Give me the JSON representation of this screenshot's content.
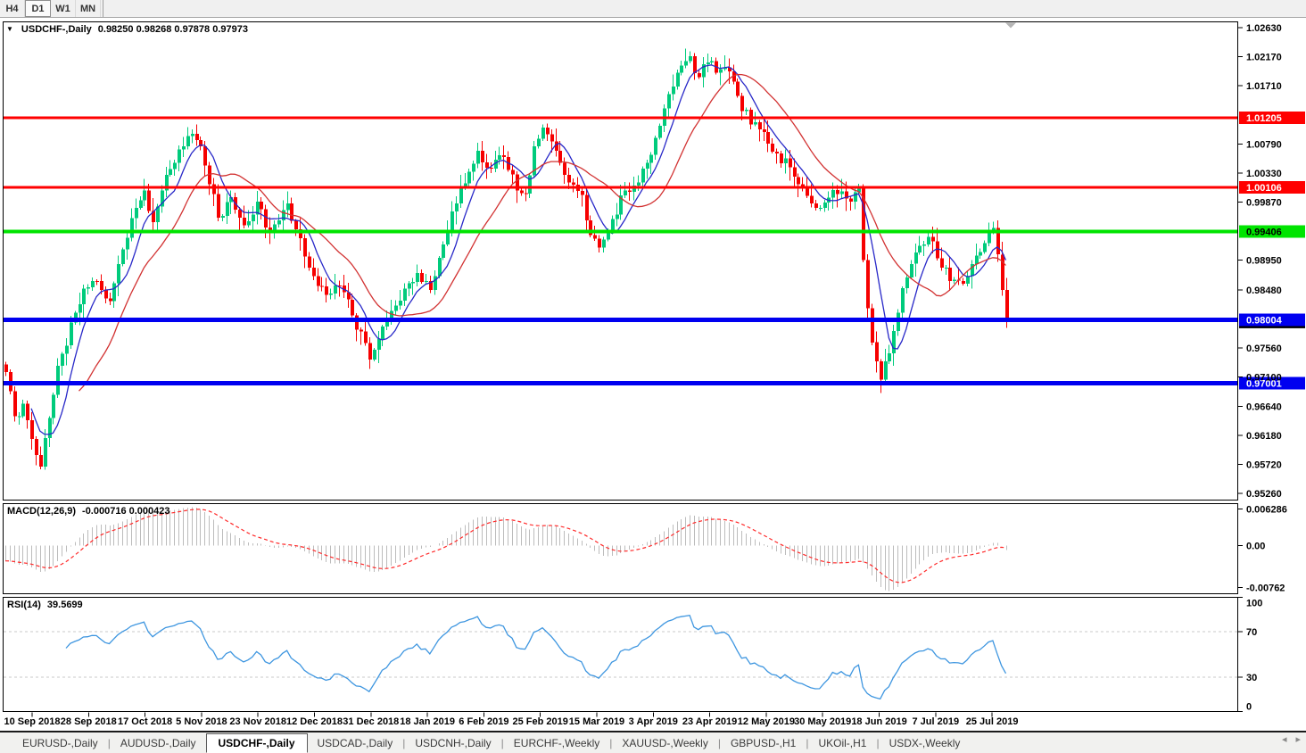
{
  "toolbar": {
    "timeframes": [
      "H4",
      "D1",
      "W1",
      "MN"
    ],
    "active": "D1"
  },
  "tabs": {
    "items": [
      "EURUSD-,Daily",
      "AUDUSD-,Daily",
      "USDCHF-,Daily",
      "USDCAD-,Daily",
      "USDCNH-,Daily",
      "EURCHF-,Weekly",
      "XAUUSD-,Weekly",
      "GBPUSD-,H1",
      "UKOil-,H1",
      "USDX-,Weekly"
    ],
    "active": "USDCHF-,Daily"
  },
  "chart_data": {
    "type": "candlestick",
    "symbol": "USDCHF",
    "timeframe": "Daily",
    "title": "USDCHF-,Daily",
    "ohlc": "0.98250 0.98268 0.97878 0.97973",
    "colors": {
      "bull": "#00cb7c",
      "bear": "#f60000",
      "ma_fast": "#2828c8",
      "ma_slow": "#d23232",
      "macd_histogram": "#bcbcbc",
      "macd_signal": "#ff2a2a",
      "rsi_line": "#3e96e0",
      "rsi_level_dash": "#c8c8c8"
    },
    "price_axis": {
      "ticks": [
        "1.02630",
        "1.02170",
        "1.01710",
        "1.00790",
        "1.00330",
        "0.99870",
        "0.98950",
        "0.98480",
        "0.97560",
        "0.97100",
        "0.96640",
        "0.96180",
        "0.95720",
        "0.95260"
      ]
    },
    "horizontal_levels": [
      {
        "label": "1.01205",
        "price": 1.01205,
        "color": "#ff0000",
        "text_color": "#ffffff",
        "width": 3
      },
      {
        "label": "1.00106",
        "price": 1.00106,
        "color": "#ff0000",
        "text_color": "#ffffff",
        "width": 3
      },
      {
        "label": "0.99406",
        "price": 0.99406,
        "color": "#00e400",
        "text_color": "#000000",
        "width": 4
      },
      {
        "label": "0.98004",
        "price": 0.98004,
        "color": "#0000f0",
        "text_color": "#ffffff",
        "width": 5
      },
      {
        "label": "0.97001",
        "price": 0.97001,
        "color": "#0000f0",
        "text_color": "#ffffff",
        "width": 5
      }
    ],
    "current_price_label": {
      "label": "0.97973",
      "price": 0.97973,
      "bg": "#000000",
      "text_color": "#ffffff"
    },
    "bar_count": 232,
    "close_path": [
      [
        0,
        0.9718
      ],
      [
        2,
        0.9648
      ],
      [
        4,
        0.9668
      ],
      [
        6,
        0.9612
      ],
      [
        8,
        0.9568
      ],
      [
        10,
        0.9645
      ],
      [
        12,
        0.9728
      ],
      [
        14,
        0.976
      ],
      [
        16,
        0.9812
      ],
      [
        18,
        0.985
      ],
      [
        21,
        0.9862
      ],
      [
        24,
        0.983
      ],
      [
        27,
        0.9912
      ],
      [
        30,
        0.9978
      ],
      [
        32,
        1.0005
      ],
      [
        34,
        0.9955
      ],
      [
        37,
        1.003
      ],
      [
        40,
        1.007
      ],
      [
        43,
        1.0095
      ],
      [
        45,
        1.0075
      ],
      [
        47,
        1.0015
      ],
      [
        49,
        0.9962
      ],
      [
        52,
        0.9995
      ],
      [
        55,
        0.995
      ],
      [
        58,
        0.9988
      ],
      [
        61,
        0.9938
      ],
      [
        63,
        0.9958
      ],
      [
        65,
        0.9985
      ],
      [
        68,
        0.993
      ],
      [
        71,
        0.987
      ],
      [
        74,
        0.984
      ],
      [
        77,
        0.9855
      ],
      [
        80,
        0.9808
      ],
      [
        82,
        0.9782
      ],
      [
        84,
        0.9738
      ],
      [
        86,
        0.977
      ],
      [
        89,
        0.9815
      ],
      [
        92,
        0.985
      ],
      [
        95,
        0.9875
      ],
      [
        98,
        0.9848
      ],
      [
        101,
        0.992
      ],
      [
        104,
        0.9985
      ],
      [
        107,
        1.0035
      ],
      [
        109,
        1.0068
      ],
      [
        112,
        1.004
      ],
      [
        115,
        1.0058
      ],
      [
        118,
        1.0005
      ],
      [
        120,
        1.0
      ],
      [
        122,
        1.0075
      ],
      [
        124,
        1.0105
      ],
      [
        127,
        1.0068
      ],
      [
        130,
        1.0018
      ],
      [
        133,
        0.9998
      ],
      [
        135,
        0.9935
      ],
      [
        137,
        0.9915
      ],
      [
        140,
        0.996
      ],
      [
        143,
        1.0005
      ],
      [
        146,
        1.0018
      ],
      [
        149,
        1.0062
      ],
      [
        152,
        1.0135
      ],
      [
        155,
        1.0192
      ],
      [
        158,
        1.0218
      ],
      [
        160,
        1.0185
      ],
      [
        162,
        1.0208
      ],
      [
        164,
        1.0192
      ],
      [
        166,
        1.02
      ],
      [
        169,
        1.0155
      ],
      [
        172,
        1.011
      ],
      [
        175,
        1.0098
      ],
      [
        178,
        1.0064
      ],
      [
        181,
        1.0042
      ],
      [
        184,
        1.001
      ],
      [
        187,
        0.9978
      ],
      [
        190,
        0.9994
      ],
      [
        193,
        1.0004
      ],
      [
        195,
        0.9988
      ],
      [
        197,
        1.0008
      ],
      [
        198,
        0.9895
      ],
      [
        200,
        0.9765
      ],
      [
        202,
        0.9706
      ],
      [
        204,
        0.9748
      ],
      [
        206,
        0.9812
      ],
      [
        208,
        0.9868
      ],
      [
        211,
        0.9918
      ],
      [
        213,
        0.9932
      ],
      [
        215,
        0.9898
      ],
      [
        218,
        0.9862
      ],
      [
        221,
        0.9858
      ],
      [
        224,
        0.9902
      ],
      [
        227,
        0.994
      ],
      [
        228,
        0.9946
      ],
      [
        229,
        0.9904
      ],
      [
        230,
        0.9848
      ],
      [
        231,
        0.97973
      ]
    ],
    "moving_averages": [
      {
        "name": "fast",
        "period": 7,
        "color": "#2828c8"
      },
      {
        "name": "slow",
        "period": 18,
        "color": "#d23232"
      }
    ],
    "macd": {
      "title": "MACD(12,26,9)",
      "values": "-0.000716 0.000423",
      "ticks": [
        "0.006286",
        "0.00",
        "-0.00762"
      ]
    },
    "rsi": {
      "title": "RSI(14)",
      "value": "39.5699",
      "ticks": [
        "100",
        "70",
        "30",
        "0"
      ],
      "levels": [
        70,
        30
      ]
    },
    "time_axis": {
      "labels": [
        "10 Sep 2018",
        "28 Sep 2018",
        "17 Oct 2018",
        "5 Nov 2018",
        "23 Nov 2018",
        "12 Dec 2018",
        "31 Dec 2018",
        "18 Jan 2019",
        "6 Feb 2019",
        "25 Feb 2019",
        "15 Mar 2019",
        "3 Apr 2019",
        "23 Apr 2019",
        "12 May 2019",
        "30 May 2019",
        "18 Jun 2019",
        "7 Jul 2019",
        "25 Jul 2019"
      ]
    }
  }
}
